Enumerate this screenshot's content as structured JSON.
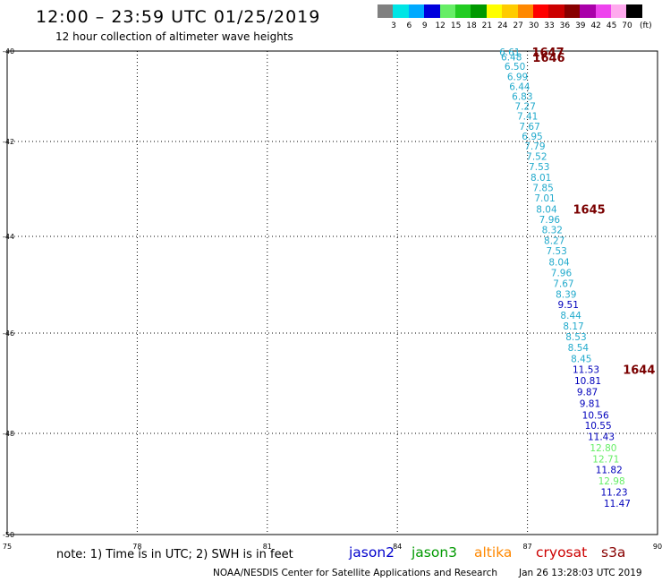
{
  "header": {
    "title": "12:00 – 23:59 UTC 01/25/2019",
    "subtitle": "12 hour collection of altimeter wave heights"
  },
  "legend": {
    "unit": "(ft)",
    "bins": [
      {
        "label": "3",
        "color": "#808080"
      },
      {
        "label": "6",
        "color": "#00e5e5"
      },
      {
        "label": "9",
        "color": "#00aaff"
      },
      {
        "label": "12",
        "color": "#0000dd"
      },
      {
        "label": "15",
        "color": "#66ee66"
      },
      {
        "label": "18",
        "color": "#22cc22"
      },
      {
        "label": "21",
        "color": "#009900"
      },
      {
        "label": "24",
        "color": "#ffff00"
      },
      {
        "label": "27",
        "color": "#ffcc00"
      },
      {
        "label": "30",
        "color": "#ff8800"
      },
      {
        "label": "33",
        "color": "#ff0000"
      },
      {
        "label": "36",
        "color": "#cc0000"
      },
      {
        "label": "39",
        "color": "#880000"
      },
      {
        "label": "42",
        "color": "#aa00aa"
      },
      {
        "label": "45",
        "color": "#ee44ee"
      },
      {
        "label": "70",
        "color": "#ffaaee"
      },
      {
        "label": "",
        "color": "#000000"
      }
    ]
  },
  "map": {
    "lon_ticks": [
      "75",
      "78",
      "81",
      "84",
      "87",
      "90"
    ],
    "lat_ticks": [
      "-40",
      "-42",
      "-44",
      "-46",
      "-48",
      "-50"
    ],
    "observations": [
      {
        "value": "6.61",
        "lon": 86.35,
        "lat": -40.02,
        "color": "#22aacc"
      },
      {
        "value": "6.48",
        "lon": 86.39,
        "lat": -40.13,
        "color": "#22aacc"
      },
      {
        "value": "6.50",
        "lon": 86.47,
        "lat": -40.34,
        "color": "#22aacc"
      },
      {
        "value": "6.99",
        "lon": 86.53,
        "lat": -40.56,
        "color": "#22aacc"
      },
      {
        "value": "6.44",
        "lon": 86.58,
        "lat": -40.78,
        "color": "#22aacc"
      },
      {
        "value": "6.83",
        "lon": 86.64,
        "lat": -41.0,
        "color": "#22aacc"
      },
      {
        "value": "7.27",
        "lon": 86.71,
        "lat": -41.22,
        "color": "#22aacc"
      },
      {
        "value": "7.41",
        "lon": 86.76,
        "lat": -41.44,
        "color": "#22aacc"
      },
      {
        "value": "7.67",
        "lon": 86.81,
        "lat": -41.66,
        "color": "#22aacc"
      },
      {
        "value": "6.95",
        "lon": 86.87,
        "lat": -41.88,
        "color": "#22aacc"
      },
      {
        "value": "7.79",
        "lon": 86.93,
        "lat": -42.09,
        "color": "#22aacc"
      },
      {
        "value": "7.52",
        "lon": 86.97,
        "lat": -42.31,
        "color": "#22aacc"
      },
      {
        "value": "7.53",
        "lon": 87.03,
        "lat": -42.53,
        "color": "#22aacc"
      },
      {
        "value": "8.01",
        "lon": 87.07,
        "lat": -42.75,
        "color": "#22aacc"
      },
      {
        "value": "7.85",
        "lon": 87.12,
        "lat": -42.97,
        "color": "#22aacc"
      },
      {
        "value": "7.01",
        "lon": 87.16,
        "lat": -43.19,
        "color": "#22aacc"
      },
      {
        "value": "8.04",
        "lon": 87.2,
        "lat": -43.42,
        "color": "#22aacc"
      },
      {
        "value": "7.96",
        "lon": 87.27,
        "lat": -43.64,
        "color": "#22aacc"
      },
      {
        "value": "8.32",
        "lon": 87.33,
        "lat": -43.86,
        "color": "#22aacc"
      },
      {
        "value": "8.27",
        "lon": 87.38,
        "lat": -44.08,
        "color": "#22aacc"
      },
      {
        "value": "7.53",
        "lon": 87.43,
        "lat": -44.3,
        "color": "#22aacc"
      },
      {
        "value": "8.04",
        "lon": 87.49,
        "lat": -44.53,
        "color": "#22aacc"
      },
      {
        "value": "7.96",
        "lon": 87.54,
        "lat": -44.75,
        "color": "#22aacc"
      },
      {
        "value": "7.67",
        "lon": 87.59,
        "lat": -44.97,
        "color": "#22aacc"
      },
      {
        "value": "8.39",
        "lon": 87.65,
        "lat": -45.19,
        "color": "#22aacc"
      },
      {
        "value": "9.51",
        "lon": 87.7,
        "lat": -45.41,
        "color": "#0000bb"
      },
      {
        "value": "8.44",
        "lon": 87.76,
        "lat": -45.63,
        "color": "#22aacc"
      },
      {
        "value": "8.17",
        "lon": 87.82,
        "lat": -45.85,
        "color": "#22aacc"
      },
      {
        "value": "8.53",
        "lon": 87.88,
        "lat": -46.07,
        "color": "#22aacc"
      },
      {
        "value": "8.54",
        "lon": 87.93,
        "lat": -46.29,
        "color": "#22aacc"
      },
      {
        "value": "8.45",
        "lon": 88.0,
        "lat": -46.51,
        "color": "#22aacc"
      },
      {
        "value": "11.53",
        "lon": 88.04,
        "lat": -46.72,
        "color": "#0000bb"
      },
      {
        "value": "10.81",
        "lon": 88.08,
        "lat": -46.95,
        "color": "#0000bb"
      },
      {
        "value": "9.87",
        "lon": 88.14,
        "lat": -47.17,
        "color": "#0000bb"
      },
      {
        "value": "9.81",
        "lon": 88.2,
        "lat": -47.4,
        "color": "#0000bb"
      },
      {
        "value": "10.56",
        "lon": 88.26,
        "lat": -47.63,
        "color": "#0000bb"
      },
      {
        "value": "10.55",
        "lon": 88.32,
        "lat": -47.84,
        "color": "#0000bb"
      },
      {
        "value": "11.43",
        "lon": 88.39,
        "lat": -48.06,
        "color": "#0000bb"
      },
      {
        "value": "12.80",
        "lon": 88.44,
        "lat": -48.28,
        "color": "#66ee66"
      },
      {
        "value": "12.71",
        "lon": 88.5,
        "lat": -48.5,
        "color": "#66ee66"
      },
      {
        "value": "11.82",
        "lon": 88.57,
        "lat": -48.72,
        "color": "#0000bb"
      },
      {
        "value": "12.98",
        "lon": 88.63,
        "lat": -48.94,
        "color": "#66ee66"
      },
      {
        "value": "11.23",
        "lon": 88.69,
        "lat": -49.16,
        "color": "#0000bb"
      },
      {
        "value": "11.47",
        "lon": 88.76,
        "lat": -49.38,
        "color": "#0000bb"
      }
    ],
    "time_labels": [
      {
        "value": "1647",
        "lon": 87.1,
        "lat": -40.02
      },
      {
        "value": "1646",
        "lon": 87.12,
        "lat": -40.14
      },
      {
        "value": "1645",
        "lon": 88.05,
        "lat": -43.42
      },
      {
        "value": "1644",
        "lon": 89.2,
        "lat": -46.72
      }
    ],
    "time_label_color": "#7a0000"
  },
  "footer": {
    "note": "note: 1) Time is in UTC; 2) SWH is in feet",
    "satellites": [
      {
        "name": "jason2",
        "color": "#0000cc"
      },
      {
        "name": "jason3",
        "color": "#009900"
      },
      {
        "name": "altika",
        "color": "#ff8800"
      },
      {
        "name": "cryosat",
        "color": "#cc0000"
      },
      {
        "name": "s3a",
        "color": "#880000"
      }
    ],
    "credit": "NOAA/NESDIS Center for Satellite Applications and Research",
    "generated": "Jan 26 13:28:03 UTC 2019"
  }
}
